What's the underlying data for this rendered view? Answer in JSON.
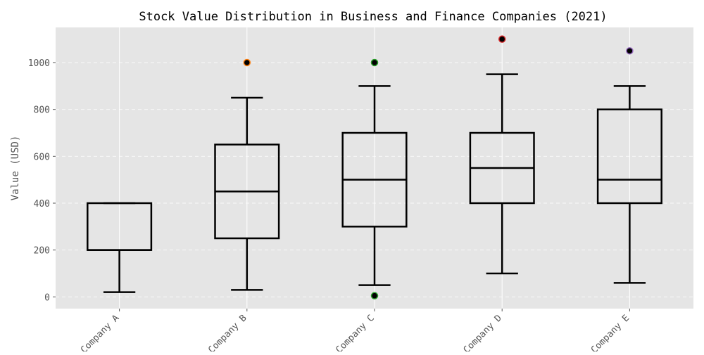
{
  "chart_data": {
    "type": "box",
    "title": "Stock Value Distribution in Business and Finance Companies (2021)",
    "xlabel": "",
    "ylabel": "Value (USD)",
    "ylim": [
      -50,
      1150
    ],
    "yticks": [
      0,
      200,
      400,
      600,
      800,
      1000
    ],
    "grid": true,
    "categories": [
      "Company A",
      "Company B",
      "Company C",
      "Company D",
      "Company E"
    ],
    "boxes": [
      {
        "category": "Company A",
        "whislo": 20,
        "q1": 200,
        "med": 200,
        "q3": 400,
        "whishi": 400,
        "fliers": []
      },
      {
        "category": "Company B",
        "whislo": 30,
        "q1": 250,
        "med": 450,
        "q3": 650,
        "whishi": 850,
        "fliers": [
          1000
        ]
      },
      {
        "category": "Company C",
        "whislo": 50,
        "q1": 300,
        "med": 500,
        "q3": 700,
        "whishi": 900,
        "fliers": [
          1000,
          5
        ]
      },
      {
        "category": "Company D",
        "whislo": 100,
        "q1": 400,
        "med": 550,
        "q3": 700,
        "whishi": 950,
        "fliers": [
          1100
        ]
      },
      {
        "category": "Company E",
        "whislo": 60,
        "q1": 400,
        "med": 500,
        "q3": 800,
        "whishi": 900,
        "fliers": [
          1050
        ]
      }
    ],
    "outlier_colors": [
      "#1f77b4",
      "#ff7f0e",
      "#2ca02c",
      "#d62728",
      "#9467bd"
    ],
    "colors": {
      "background": "#e5e5e5",
      "grid": "#ffffff",
      "box": "#000000",
      "text": "#555555",
      "title": "#000000"
    }
  }
}
